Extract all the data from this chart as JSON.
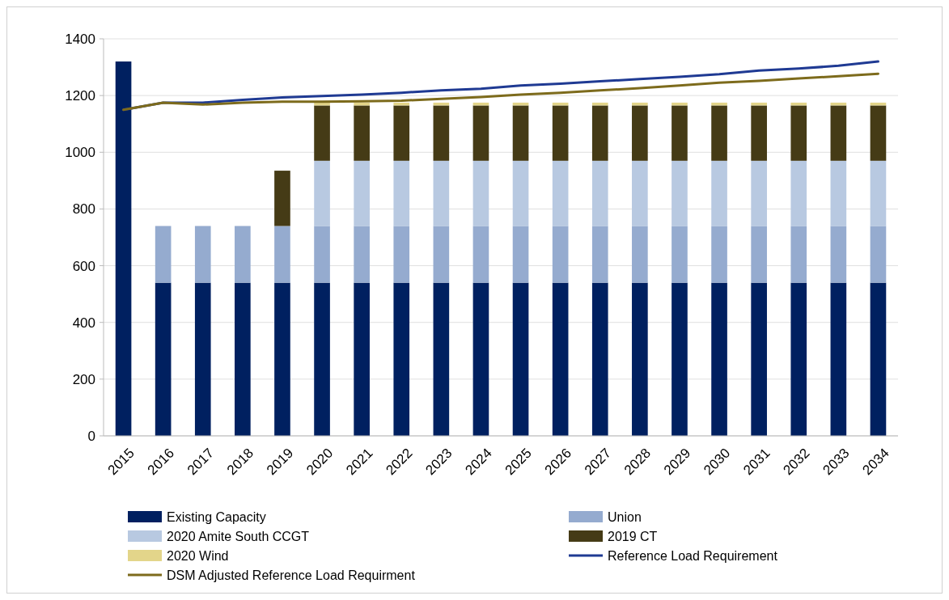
{
  "chart_data": {
    "type": "bar",
    "stacked": true,
    "categories": [
      "2015",
      "2016",
      "2017",
      "2018",
      "2019",
      "2020",
      "2021",
      "2022",
      "2023",
      "2024",
      "2025",
      "2026",
      "2027",
      "2028",
      "2029",
      "2030",
      "2031",
      "2032",
      "2033",
      "2034"
    ],
    "ylim": [
      0,
      1400
    ],
    "yticks": [
      0,
      200,
      400,
      600,
      800,
      1000,
      1200,
      1400
    ],
    "grid": "y",
    "legend": "bottom",
    "series": [
      {
        "name": "Existing Capacity",
        "color": "#002060",
        "values": [
          1320,
          540,
          540,
          540,
          540,
          540,
          540,
          540,
          540,
          540,
          540,
          540,
          540,
          540,
          540,
          540,
          540,
          540,
          540,
          540
        ]
      },
      {
        "name": "Union",
        "color": "#95abcf",
        "values": [
          0,
          200,
          200,
          200,
          200,
          200,
          200,
          200,
          200,
          200,
          200,
          200,
          200,
          200,
          200,
          200,
          200,
          200,
          200,
          200
        ]
      },
      {
        "name": "2020 Amite South CCGT",
        "color": "#b8c9e1",
        "values": [
          0,
          0,
          0,
          0,
          0,
          230,
          230,
          230,
          230,
          230,
          230,
          230,
          230,
          230,
          230,
          230,
          230,
          230,
          230,
          230
        ]
      },
      {
        "name": "2019 CT",
        "color": "#453b16",
        "values": [
          0,
          0,
          0,
          0,
          195,
          195,
          195,
          195,
          195,
          195,
          195,
          195,
          195,
          195,
          195,
          195,
          195,
          195,
          195,
          195
        ]
      },
      {
        "name": "2020 Wind",
        "color": "#e3d58a",
        "values": [
          0,
          0,
          0,
          0,
          0,
          10,
          10,
          10,
          10,
          10,
          10,
          10,
          10,
          10,
          10,
          10,
          10,
          10,
          10,
          10
        ]
      },
      {
        "name": "Reference Load Requirement",
        "type": "line",
        "color": "#1f3a93",
        "values": [
          1150,
          1175,
          1175,
          1185,
          1193,
          1198,
          1203,
          1210,
          1218,
          1224,
          1235,
          1242,
          1250,
          1258,
          1266,
          1275,
          1288,
          1295,
          1305,
          1320
        ]
      },
      {
        "name": "DSM Adjusted Reference Load Requirment",
        "type": "line",
        "color": "#7d6b1c",
        "values": [
          1150,
          1175,
          1168,
          1175,
          1178,
          1178,
          1180,
          1182,
          1188,
          1195,
          1203,
          1210,
          1218,
          1226,
          1235,
          1245,
          1252,
          1260,
          1268,
          1277
        ]
      }
    ]
  }
}
